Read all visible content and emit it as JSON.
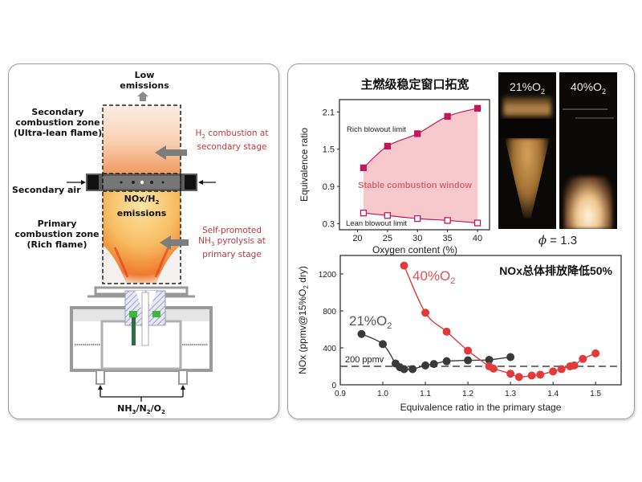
{
  "schematic": {
    "low_emissions": [
      "Low",
      "emissions"
    ],
    "secondary_zone": [
      "Secondary",
      "combustion zone",
      "(Ultra-lean flame)"
    ],
    "secondary_air": "Secondary air",
    "primary_zone": [
      "Primary",
      "combustion zone",
      "(Rich flame)"
    ],
    "h2_combustion": {
      "pre": "H",
      "sub": "2",
      "post": " combustion at",
      "line2": "secondary stage"
    },
    "nox_h2": {
      "pre": "NOx/H",
      "sub": "2",
      "line2": "emissions"
    },
    "pyrolysis": {
      "line1": "Self-promoted",
      "pre": "NH",
      "sub": "3",
      "post": " pyrolysis at",
      "line3": "primary stage"
    },
    "inlet": {
      "a": "NH",
      "s1": "3",
      "b": "/N",
      "s2": "2",
      "c": "/O",
      "s3": "2"
    },
    "colors": {
      "accent_red": "#c0393b",
      "injector_green": "#3db83d"
    }
  },
  "photos": {
    "left_label": {
      "pre": "21%O",
      "sub": "2"
    },
    "right_label": {
      "pre": "40%O",
      "sub": "2"
    },
    "phi_label": {
      "symbol": "ϕ",
      "text": " = 1.3"
    }
  },
  "chart_data": [
    {
      "type": "area",
      "title": "主燃级稳定窗口拓宽",
      "xlabel": "Oxygen content (%)",
      "ylabel": "Equivalence ratio",
      "xlim": [
        17,
        42
      ],
      "ylim": [
        0.2,
        2.3
      ],
      "xticks": [
        20,
        25,
        30,
        35,
        40
      ],
      "yticks": [
        0.3,
        0.9,
        1.5,
        2.1
      ],
      "ytick_labels": [
        "0.3",
        "0.9",
        "1.5",
        "2.1"
      ],
      "x": [
        21,
        25,
        30,
        35,
        40
      ],
      "series": [
        {
          "name": "Rich blowout limit",
          "values": [
            1.2,
            1.55,
            1.75,
            2.03,
            2.16
          ],
          "marker": "filled-square",
          "color": "#c2185b"
        },
        {
          "name": "Lean blowout limit",
          "values": [
            0.47,
            0.43,
            0.38,
            0.35,
            0.31
          ],
          "marker": "open-square",
          "color": "#c2185b"
        }
      ],
      "fill_label": "Stable combustion window",
      "fill_color": "#f8c9cc"
    },
    {
      "type": "line",
      "annotation": "NOx总体排放降低50%",
      "xlabel": "Equivalence ratio in the primary stage",
      "ylabel": {
        "pre": "NOx (ppmv@15%O",
        "sub": "2",
        "post": " dry)"
      },
      "xlim": [
        0.9,
        1.56
      ],
      "ylim": [
        0,
        1400
      ],
      "xticks": [
        0.9,
        1.0,
        1.1,
        1.2,
        1.3,
        1.4,
        1.5
      ],
      "xtick_labels": [
        "0.9",
        "1.0",
        "1.1",
        "1.2",
        "1.3",
        "1.4",
        "1.5"
      ],
      "yticks": [
        0,
        400,
        800,
        1200
      ],
      "ytick_labels": [
        "0",
        "400",
        "800",
        "1200"
      ],
      "reference_line": {
        "value": 200,
        "label": "200 ppmv"
      },
      "series": [
        {
          "name": "21%O2",
          "label_pre": "21%O",
          "label_sub": "2",
          "color": "#3a3a3a",
          "x": [
            0.95,
            1.0,
            1.03,
            1.04,
            1.05,
            1.07,
            1.1,
            1.12,
            1.15,
            1.2,
            1.25,
            1.3
          ],
          "y": [
            550,
            440,
            230,
            190,
            170,
            170,
            210,
            225,
            255,
            265,
            270,
            300
          ]
        },
        {
          "name": "40%O2",
          "label_pre": "40%O",
          "label_sub": "2",
          "color": "#e23a3a",
          "x": [
            1.05,
            1.1,
            1.15,
            1.2,
            1.25,
            1.26,
            1.3,
            1.32,
            1.35,
            1.37,
            1.4,
            1.42,
            1.44,
            1.45,
            1.47,
            1.5
          ],
          "y": [
            1290,
            780,
            575,
            370,
            200,
            175,
            120,
            85,
            100,
            110,
            145,
            170,
            200,
            210,
            280,
            340
          ]
        }
      ]
    }
  ]
}
